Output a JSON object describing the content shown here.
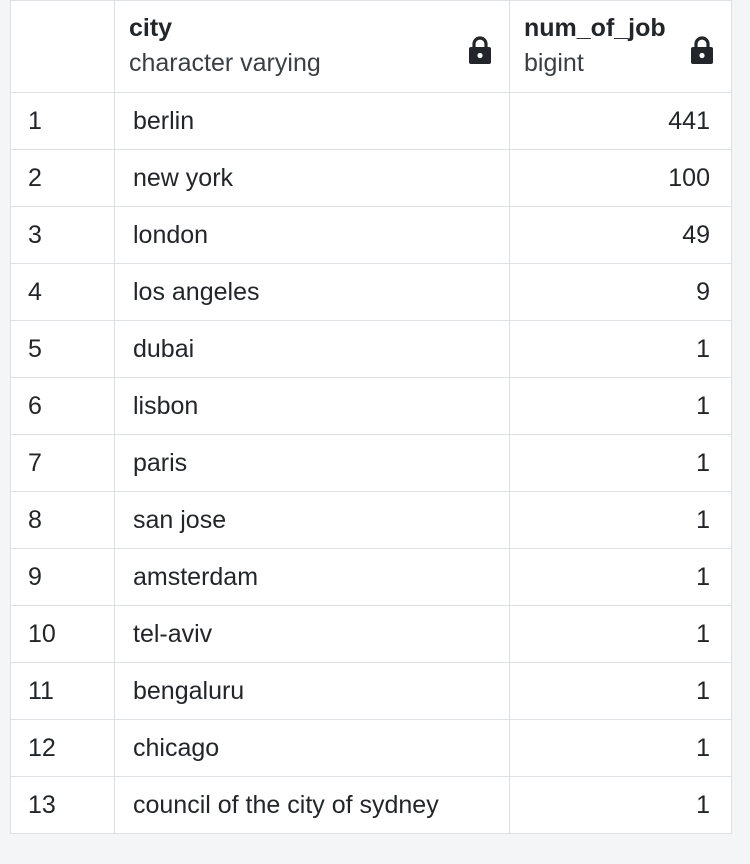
{
  "columns": [
    {
      "name": "city",
      "type": "character varying",
      "icon": "lock-icon"
    },
    {
      "name": "num_of_job",
      "type": "bigint",
      "icon": "lock-icon"
    }
  ],
  "rows": [
    {
      "index": "1",
      "city": "berlin",
      "num_of_job": "441"
    },
    {
      "index": "2",
      "city": "new york",
      "num_of_job": "100"
    },
    {
      "index": "3",
      "city": "london",
      "num_of_job": "49"
    },
    {
      "index": "4",
      "city": "los angeles",
      "num_of_job": "9"
    },
    {
      "index": "5",
      "city": "dubai",
      "num_of_job": "1"
    },
    {
      "index": "6",
      "city": "lisbon",
      "num_of_job": "1"
    },
    {
      "index": "7",
      "city": "paris",
      "num_of_job": "1"
    },
    {
      "index": "8",
      "city": "san jose",
      "num_of_job": "1"
    },
    {
      "index": "9",
      "city": "amsterdam",
      "num_of_job": "1"
    },
    {
      "index": "10",
      "city": "tel-aviv",
      "num_of_job": "1"
    },
    {
      "index": "11",
      "city": "bengaluru",
      "num_of_job": "1"
    },
    {
      "index": "12",
      "city": "chicago",
      "num_of_job": "1"
    },
    {
      "index": "13",
      "city": "council of the city of sydney",
      "num_of_job": "1"
    }
  ]
}
